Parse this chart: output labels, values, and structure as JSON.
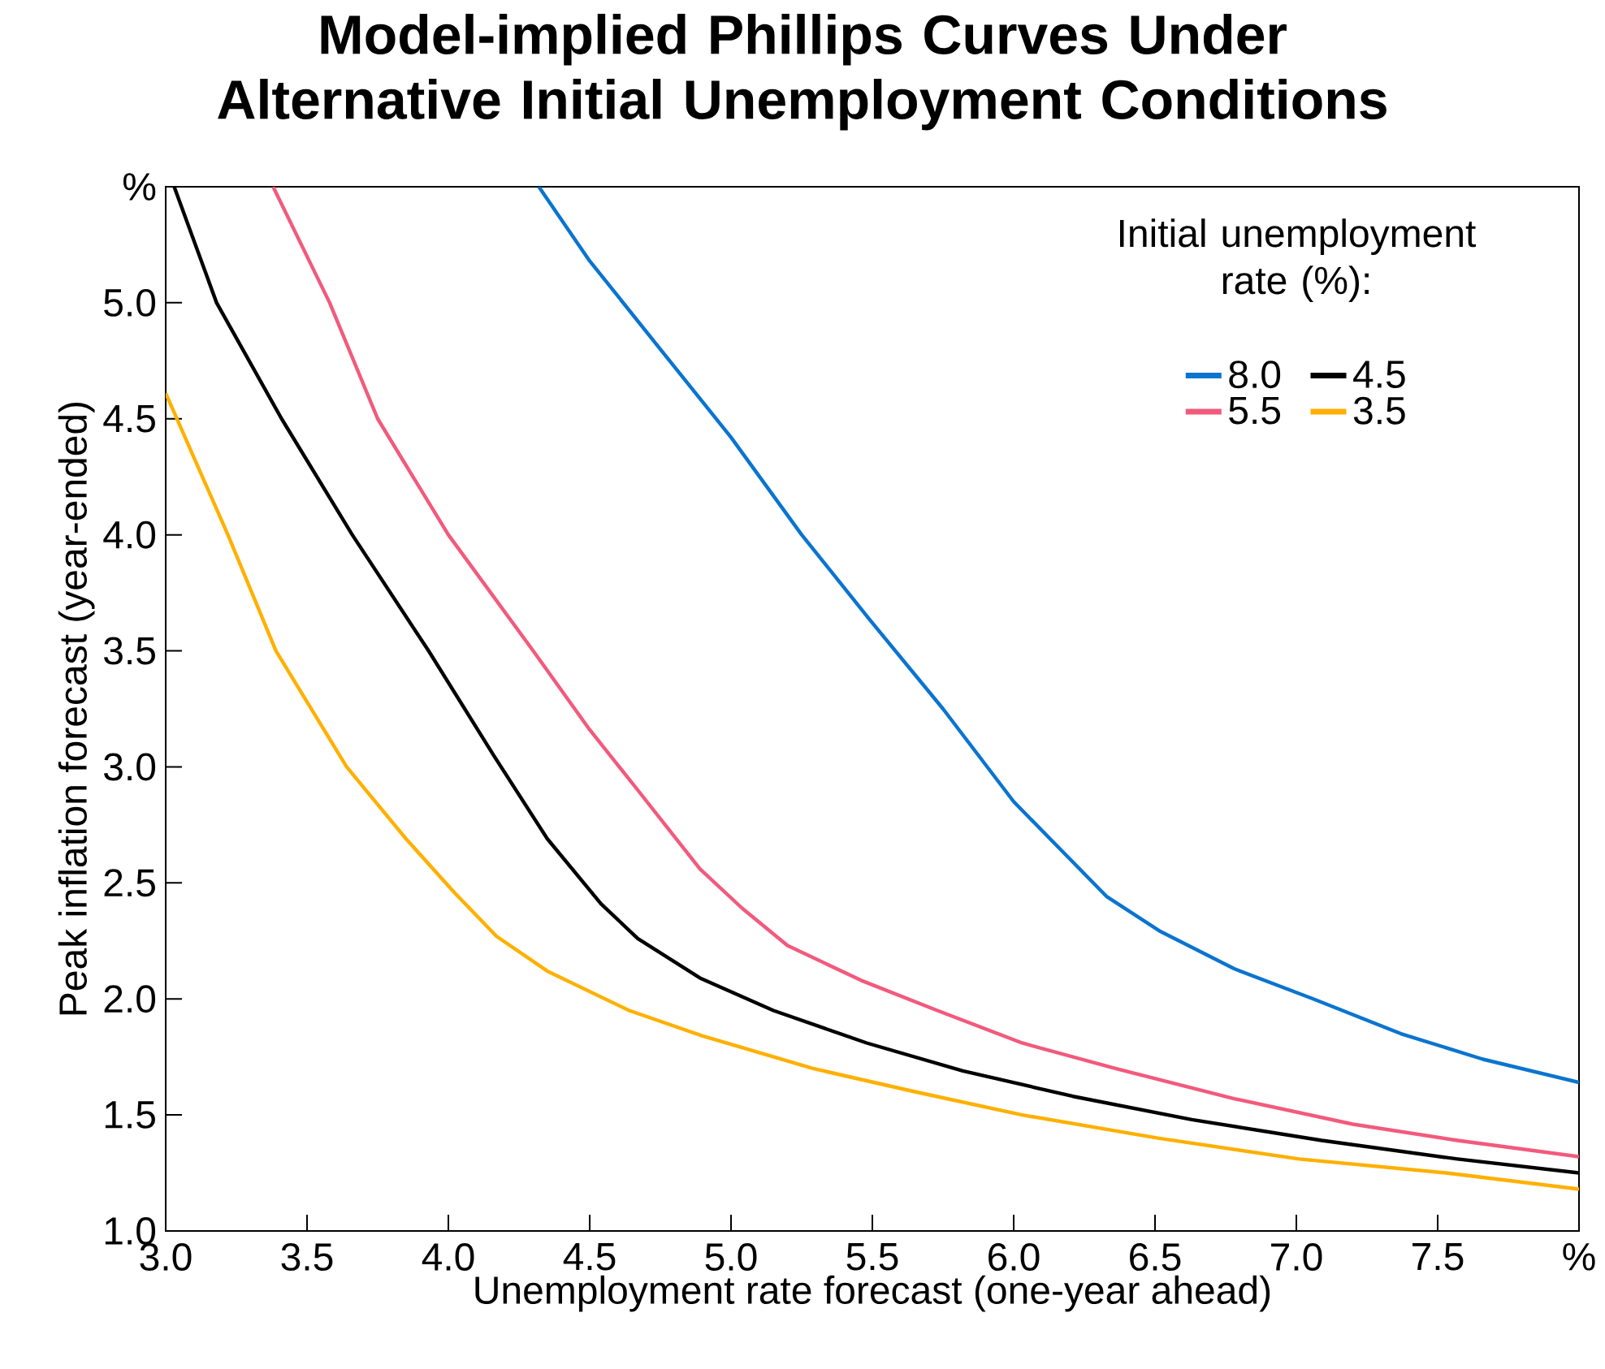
{
  "chart_data": {
    "type": "line",
    "title": "Model-implied Phillips Curves Under Alternative Initial Unemployment Conditions",
    "xlabel": "Unemployment rate forecast (one-year ahead)",
    "ylabel": "Peak inflation forecast (year-ended)",
    "legend_title": "Initial unemployment rate (%):",
    "legend": "top right",
    "marker": "none",
    "line_style": "solid",
    "xlim": [
      3,
      8
    ],
    "ylim": [
      1,
      5.5
    ],
    "xticks": [
      {
        "value": 3,
        "label": "3.0"
      },
      3.5,
      {
        "value": 4,
        "label": "4.0"
      },
      4.5,
      {
        "value": 5,
        "label": "5.0"
      },
      5.5,
      {
        "value": 6,
        "label": "6.0"
      },
      6.5,
      {
        "value": 7,
        "label": "7.0"
      },
      7.5,
      {
        "value": 8,
        "label": "%"
      }
    ],
    "yticks": [
      {
        "value": 1,
        "label": "1.0"
      },
      1.5,
      {
        "value": 2,
        "label": "2.0"
      },
      2.5,
      {
        "value": 3,
        "label": "3.0"
      },
      3.5,
      {
        "value": 4,
        "label": "4.0"
      },
      4.5,
      {
        "value": 5,
        "label": "5.0"
      },
      {
        "value": 5.5,
        "label": "%"
      }
    ],
    "series": [
      {
        "name": "8.0",
        "color": "#0a74d0",
        "x": [
          4.32,
          4.5,
          4.75,
          5.0,
          5.25,
          5.5,
          5.75,
          6.0,
          6.33,
          6.52,
          6.78,
          7.06,
          7.37,
          7.66,
          8.0
        ],
        "values": [
          5.5,
          5.18,
          4.8,
          4.42,
          4.0,
          3.62,
          3.25,
          2.85,
          2.44,
          2.29,
          2.13,
          2.0,
          1.85,
          1.74,
          1.64
        ]
      },
      {
        "name": "4.5",
        "color": "#000000",
        "x": [
          3.03,
          3.18,
          3.41,
          3.66,
          3.93,
          4.16,
          4.35,
          4.54,
          4.67,
          4.89,
          5.15,
          5.48,
          5.82,
          6.21,
          6.63,
          7.09,
          7.57,
          8.0
        ],
        "values": [
          5.5,
          5.0,
          4.5,
          4.0,
          3.5,
          3.05,
          2.69,
          2.41,
          2.26,
          2.09,
          1.95,
          1.81,
          1.69,
          1.58,
          1.48,
          1.39,
          1.31,
          1.25
        ]
      },
      {
        "name": "5.5",
        "color": "#f25a7c",
        "x": [
          3.38,
          3.58,
          3.75,
          4.0,
          4.3,
          4.5,
          4.67,
          4.89,
          5.04,
          5.2,
          5.46,
          5.73,
          6.03,
          6.36,
          6.78,
          7.2,
          7.57,
          8.0
        ],
        "values": [
          5.5,
          5.0,
          4.5,
          4.0,
          3.5,
          3.16,
          2.9,
          2.56,
          2.39,
          2.23,
          2.08,
          1.95,
          1.81,
          1.7,
          1.57,
          1.46,
          1.39,
          1.32
        ]
      },
      {
        "name": "3.5",
        "color": "#ffb000",
        "x": [
          3.0,
          3.22,
          3.39,
          3.64,
          3.85,
          4.02,
          4.17,
          4.35,
          4.64,
          4.9,
          5.29,
          5.65,
          6.03,
          6.51,
          7.01,
          7.53,
          8.0
        ],
        "values": [
          4.61,
          4.0,
          3.5,
          3.0,
          2.69,
          2.46,
          2.27,
          2.12,
          1.95,
          1.84,
          1.7,
          1.6,
          1.5,
          1.4,
          1.31,
          1.25,
          1.18
        ]
      }
    ]
  }
}
